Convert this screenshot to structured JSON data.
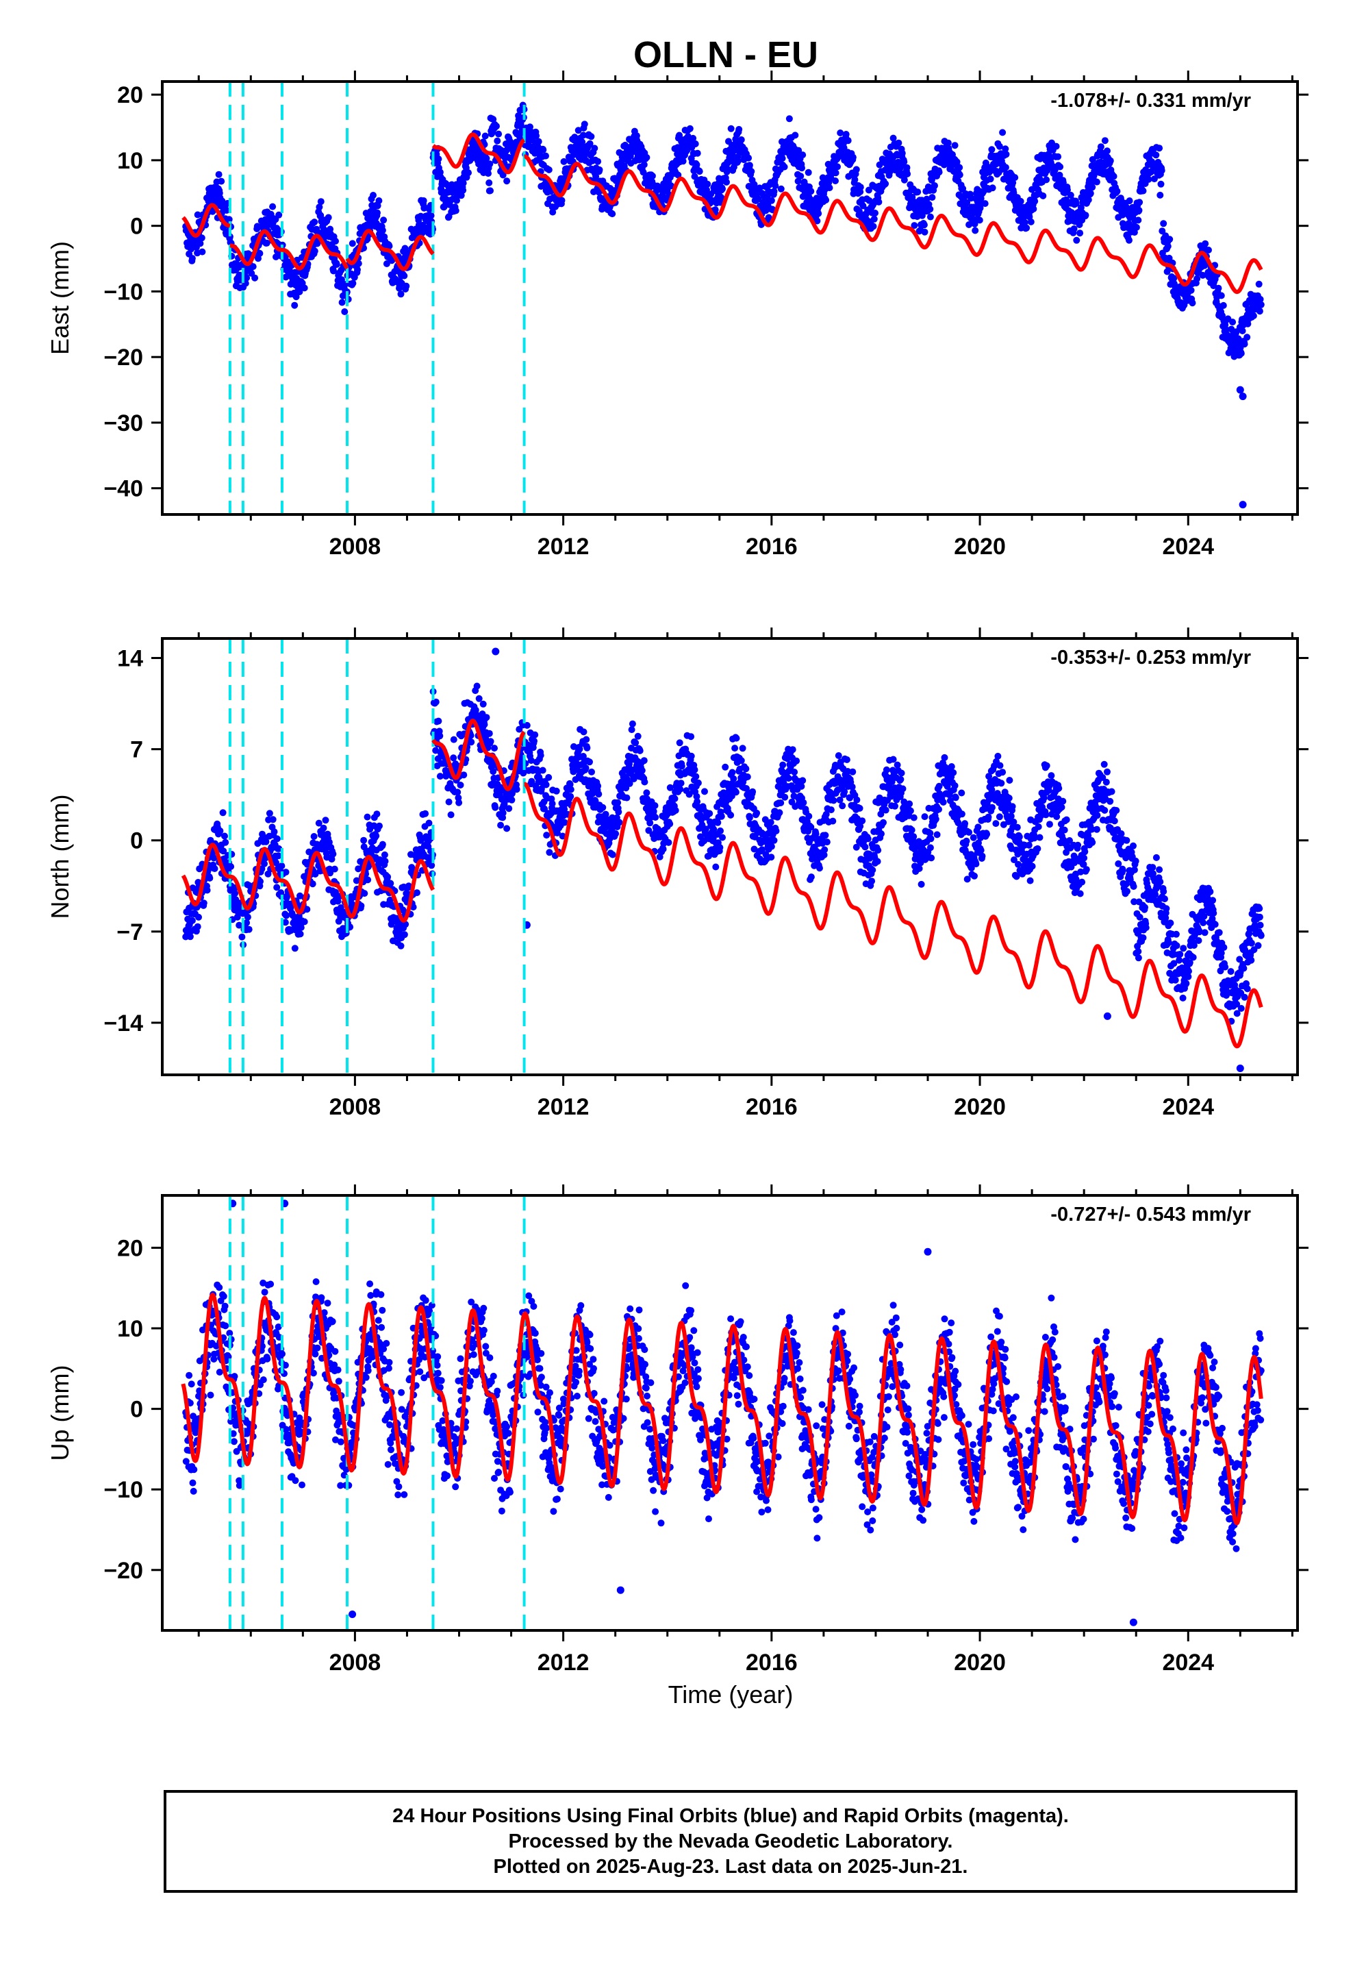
{
  "title": "OLLN - EU",
  "x_axis_label": "Time (year)",
  "footer": {
    "line1": "24 Hour Positions Using Final Orbits (blue) and Rapid Orbits (magenta).",
    "line2": "Processed by the Nevada Geodetic Laboratory.",
    "line3": "Plotted on 2025-Aug-23. Last data on 2025-Jun-21."
  },
  "colors": {
    "observations": "#0000ff",
    "model_fit": "#ff0000",
    "offsets": "#00e5ee",
    "frame": "#000000"
  },
  "chart_data": [
    {
      "type": "scatter",
      "component": "east",
      "ylabel": "East (mm)",
      "xlabel": "",
      "rate": "-1.078+/- 0.331 mm/yr",
      "xlim": [
        2004.3,
        2026.1
      ],
      "ylim": [
        -44,
        22
      ],
      "xticks": [
        2008,
        2012,
        2016,
        2020,
        2024
      ],
      "yticks": [
        -40,
        -30,
        -20,
        -10,
        0,
        10,
        20
      ],
      "offset_epochs": [
        2005.6,
        2005.85,
        2006.6,
        2007.85,
        2009.5,
        2011.25
      ],
      "model": {
        "segments": [
          {
            "t0": 2004.7,
            "t1": 2005.6,
            "value_at_start": 1.5,
            "annual_amplitude": 2.0
          },
          {
            "t0": 2005.6,
            "t1": 2007.85,
            "value_at_start": -3.0,
            "annual_amplitude": 2.0
          },
          {
            "t0": 2007.85,
            "t1": 2009.5,
            "value_at_start": -3.0,
            "annual_amplitude": 2.0
          },
          {
            "t0": 2009.5,
            "t1": 2011.25,
            "value_at_start": 12.0,
            "annual_amplitude": 2.0
          },
          {
            "t0": 2011.25,
            "t1": 2025.4,
            "value_at_start": 8.0,
            "annual_amplitude": 2.0
          }
        ]
      },
      "observations": {
        "start": 2004.75,
        "end": 2025.4,
        "segments": [
          {
            "t0": 2004.75,
            "t1": 2005.6,
            "value_at_start": 2.0
          },
          {
            "t0": 2005.6,
            "t1": 2007.85,
            "value_at_start": -3.0
          },
          {
            "t0": 2007.85,
            "t1": 2009.5,
            "value_at_start": -3.0
          },
          {
            "t0": 2009.5,
            "t1": 2010.6,
            "value_at_start": 8.0
          },
          {
            "t0": 2010.6,
            "t1": 2011.25,
            "value_at_start": 16.0
          },
          {
            "t0": 2011.25,
            "t1": 2023.5,
            "value_at_start": 9.0
          },
          {
            "t0": 2023.5,
            "t1": 2025.4,
            "value_at_start": -4.0
          }
        ],
        "end_value": -17.0,
        "annual_amplitude": 4.5,
        "scatter": 2.2,
        "outliers": [
          [
            2025.05,
            -26.0
          ],
          [
            2025.0,
            -25.0
          ],
          [
            2025.05,
            -42.5
          ]
        ]
      }
    },
    {
      "type": "scatter",
      "component": "north",
      "ylabel": "North (mm)",
      "xlabel": "",
      "rate": "-0.353+/- 0.253 mm/yr",
      "xlim": [
        2004.3,
        2026.1
      ],
      "ylim": [
        -18,
        15.5
      ],
      "xticks": [
        2008,
        2012,
        2016,
        2020,
        2024
      ],
      "yticks": [
        -14,
        -7,
        0,
        7,
        14
      ],
      "offset_epochs": [
        2005.6,
        2005.85,
        2006.6,
        2007.85,
        2009.5,
        2011.25
      ],
      "model": {
        "segments": [
          {
            "t0": 2004.7,
            "t1": 2009.5,
            "value_at_start": -2.5,
            "annual_amplitude": 1.8
          },
          {
            "t0": 2009.5,
            "t1": 2011.25,
            "value_at_start": 7.5,
            "annual_amplitude": 1.8
          },
          {
            "t0": 2011.25,
            "t1": 2025.4,
            "value_at_start": 2.0,
            "annual_amplitude": 1.8
          }
        ]
      },
      "observations": {
        "start": 2004.75,
        "end": 2025.4,
        "segments": [
          {
            "t0": 2004.75,
            "t1": 2009.5,
            "value_at_start": -3.0
          },
          {
            "t0": 2009.5,
            "t1": 2011.25,
            "value_at_start": 8.0
          },
          {
            "t0": 2011.25,
            "t1": 2023.0,
            "value_at_start": 4.0
          },
          {
            "t0": 2023.0,
            "t1": 2025.4,
            "value_at_start": -6.0
          }
        ],
        "end_value": -9.5,
        "annual_amplitude": 3.0,
        "scatter": 1.6,
        "outliers": [
          [
            2025.0,
            -17.5
          ],
          [
            2022.45,
            -13.5
          ],
          [
            2011.3,
            -6.5
          ],
          [
            2010.7,
            14.5
          ]
        ]
      }
    },
    {
      "type": "scatter",
      "component": "up",
      "ylabel": "Up (mm)",
      "xlabel": "Time (year)",
      "rate": "-0.727+/- 0.543 mm/yr",
      "xlim": [
        2004.3,
        2026.1
      ],
      "ylim": [
        -27.5,
        26.5
      ],
      "xticks": [
        2008,
        2012,
        2016,
        2020,
        2024
      ],
      "yticks": [
        -20,
        -10,
        0,
        10,
        20
      ],
      "offset_epochs": [
        2005.6,
        2005.85,
        2006.6,
        2007.85,
        2009.5,
        2011.25
      ],
      "model": {
        "segments": [
          {
            "t0": 2004.7,
            "t1": 2025.4,
            "value_at_start": 4.0,
            "annual_amplitude": 8.0
          }
        ],
        "end_value": -4.0
      },
      "observations": {
        "start": 2004.75,
        "end": 2025.4,
        "segments": [
          {
            "t0": 2004.75,
            "t1": 2025.4,
            "value_at_start": 4.0
          }
        ],
        "end_value": -4.0,
        "annual_amplitude": 8.0,
        "scatter": 4.2,
        "outliers": [
          [
            2005.65,
            25.5
          ],
          [
            2006.65,
            25.5
          ],
          [
            2007.95,
            -25.5
          ],
          [
            2022.95,
            -26.5
          ],
          [
            2013.1,
            -22.5
          ],
          [
            2019.0,
            19.5
          ]
        ]
      }
    }
  ]
}
